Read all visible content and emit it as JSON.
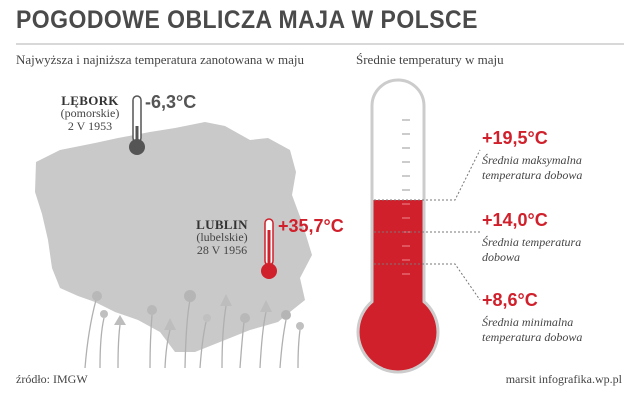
{
  "header": {
    "title": "POGODOWE OBLICZA MAJA W POLSCE",
    "subtitle_left": "Najwyższa i najniższa temperatura zanotowana w maju",
    "subtitle_right": "Średnie temperatury w maju"
  },
  "map": {
    "lowest": {
      "city": "LĘBORK",
      "region": "(pomorskie)",
      "date": "2 V 1953",
      "temp": "-6,3°C"
    },
    "highest": {
      "city": "LUBLIN",
      "region": "(lubelskie)",
      "date": "28 V 1956",
      "temp": "+35,7°C"
    }
  },
  "averages": [
    {
      "temp": "+19,5°C",
      "label_line1": "Średnia maksymalna",
      "label_line2": "temperatura dobowa"
    },
    {
      "temp": "+14,0°C",
      "label_line1": "Średnia temperatura",
      "label_line2": "dobowa"
    },
    {
      "temp": "+8,6°C",
      "label_line1": "Średnia minimalna",
      "label_line2": "temperatura dobowa"
    }
  ],
  "footer": {
    "source": "źródło: IMGW",
    "credit": "marsit infografika.wp.pl"
  },
  "colors": {
    "red": "#d0202b",
    "map_grey": "#c9c9c9",
    "text_grey": "#555555"
  }
}
